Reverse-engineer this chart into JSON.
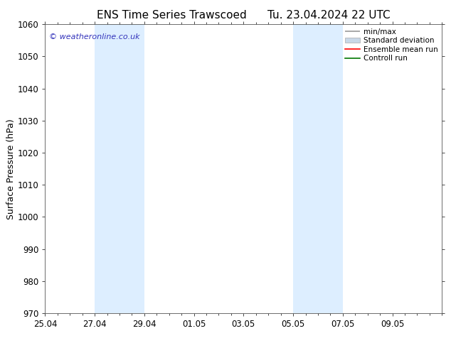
{
  "title_left": "ENS Time Series Trawscoed",
  "title_right": "Tu. 23.04.2024 22 UTC",
  "ylabel": "Surface Pressure (hPa)",
  "ylim": [
    970,
    1060
  ],
  "yticks": [
    970,
    980,
    990,
    1000,
    1010,
    1020,
    1030,
    1040,
    1050,
    1060
  ],
  "xtick_labels": [
    "25.04",
    "27.04",
    "29.04",
    "01.05",
    "03.05",
    "05.05",
    "07.05",
    "09.05"
  ],
  "xmin": 0,
  "xmax": 16,
  "background_color": "#ffffff",
  "plot_background": "#ffffff",
  "shaded_bands": [
    {
      "x_start": 2.0,
      "x_end": 4.0
    },
    {
      "x_start": 10.0,
      "x_end": 12.0
    }
  ],
  "shade_color": "#ddeeff",
  "watermark_text": "© weatheronline.co.uk",
  "watermark_color": "#3333bb",
  "legend_entries": [
    {
      "label": "min/max",
      "color": "#999999",
      "lw": 1.2
    },
    {
      "label": "Standard deviation",
      "color": "#c8d8e8",
      "lw": 6
    },
    {
      "label": "Ensemble mean run",
      "color": "#ff0000",
      "lw": 1.2
    },
    {
      "label": "Controll run",
      "color": "#007700",
      "lw": 1.2
    }
  ],
  "title_fontsize": 11,
  "tick_label_fontsize": 8.5,
  "ylabel_fontsize": 9,
  "legend_fontsize": 7.5
}
